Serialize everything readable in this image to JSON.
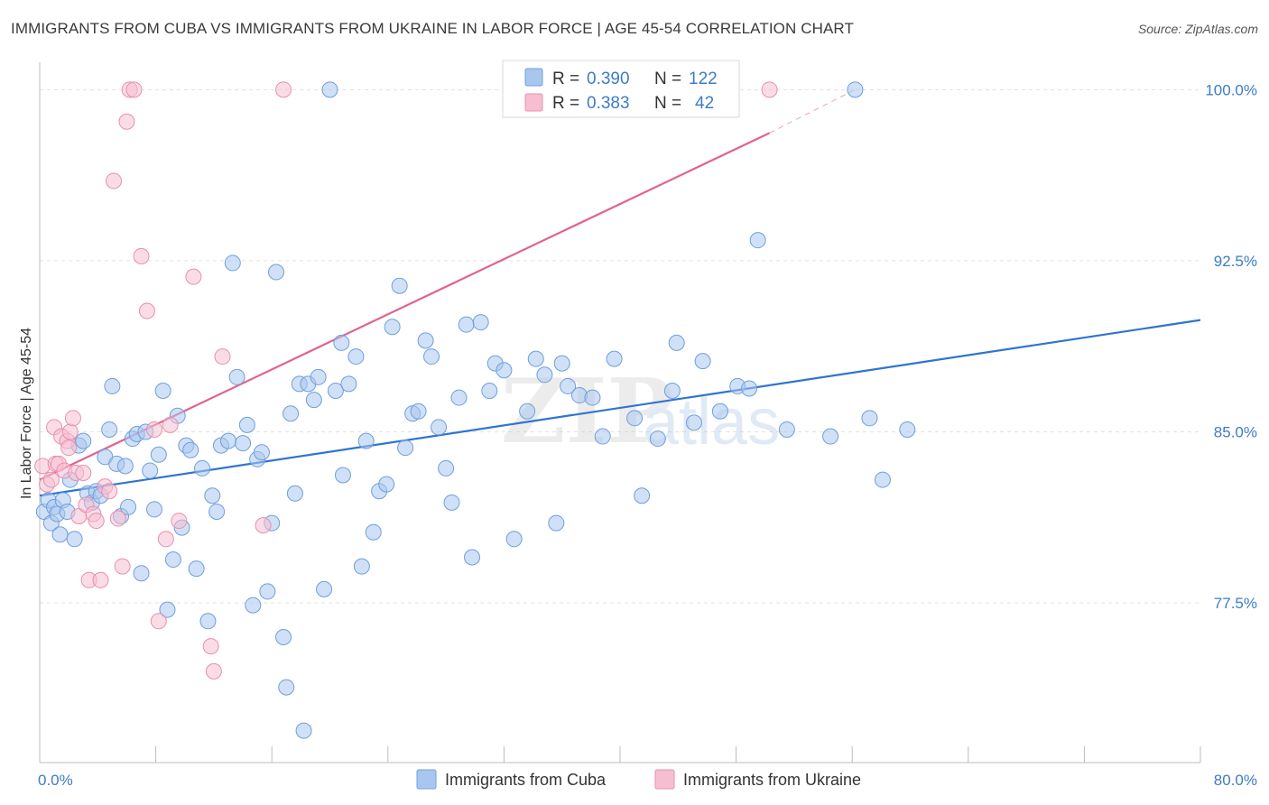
{
  "header": {
    "title": "IMMIGRANTS FROM CUBA VS IMMIGRANTS FROM UKRAINE IN LABOR FORCE | AGE 45-54 CORRELATION CHART",
    "source": "Source: ZipAtlas.com"
  },
  "watermark": {
    "zip": "ZIP",
    "atlas": "atlas"
  },
  "legend": {
    "cuba": {
      "r_label": "R =",
      "r_value": "0.390",
      "n_label": "N =",
      "n_value": "122"
    },
    "ukraine": {
      "r_label": "R =",
      "r_value": "0.383",
      "n_label": "N =",
      "n_value": "42"
    }
  },
  "colors": {
    "cuba_fill": "#a9c7ee",
    "cuba_stroke": "#6f9fdc",
    "cuba_line": "#2f74d0",
    "ukraine_fill": "#f6bfd1",
    "ukraine_stroke": "#e98fae",
    "ukraine_line": "#e2638c",
    "tick_text": "#3d7cc9",
    "grid": "#e3e3e3"
  },
  "chart_data": {
    "type": "scatter",
    "title": "IMMIGRANTS FROM CUBA VS IMMIGRANTS FROM UKRAINE IN LABOR FORCE | AGE 45-54 CORRELATION CHART",
    "xlabel": "",
    "ylabel": "In Labor Force | Age 45-54",
    "xlim": [
      0,
      80
    ],
    "ylim": [
      70.5,
      101.2
    ],
    "x_tick_labels": [
      "0.0%",
      "80.0%"
    ],
    "y_ticks": [
      77.5,
      85.0,
      92.5,
      100.0
    ],
    "y_tick_labels": [
      "77.5%",
      "85.0%",
      "92.5%",
      "100.0%"
    ],
    "grid": true,
    "legend_position": "top-center",
    "series": [
      {
        "name": "Immigrants from Cuba",
        "R": 0.39,
        "N": 122,
        "trend": {
          "x": [
            0.0,
            80.0
          ],
          "y": [
            82.2,
            89.9
          ]
        },
        "points": [
          [
            0.3,
            81.5
          ],
          [
            0.6,
            82.0
          ],
          [
            0.8,
            81.0
          ],
          [
            1.0,
            81.7
          ],
          [
            1.2,
            81.4
          ],
          [
            1.4,
            80.5
          ],
          [
            1.6,
            82.0
          ],
          [
            1.9,
            81.5
          ],
          [
            2.1,
            82.9
          ],
          [
            2.4,
            80.3
          ],
          [
            2.7,
            84.4
          ],
          [
            3.0,
            84.6
          ],
          [
            3.3,
            82.3
          ],
          [
            3.6,
            81.9
          ],
          [
            3.9,
            82.4
          ],
          [
            4.2,
            82.2
          ],
          [
            4.5,
            83.9
          ],
          [
            4.8,
            85.1
          ],
          [
            5.0,
            87.0
          ],
          [
            5.3,
            83.6
          ],
          [
            5.6,
            81.3
          ],
          [
            5.9,
            83.5
          ],
          [
            6.1,
            81.7
          ],
          [
            6.4,
            84.7
          ],
          [
            6.7,
            84.9
          ],
          [
            7.0,
            78.8
          ],
          [
            7.3,
            85.0
          ],
          [
            7.6,
            83.3
          ],
          [
            7.9,
            81.6
          ],
          [
            8.2,
            84.0
          ],
          [
            8.5,
            86.8
          ],
          [
            8.8,
            77.2
          ],
          [
            9.2,
            79.4
          ],
          [
            9.5,
            85.7
          ],
          [
            9.8,
            80.8
          ],
          [
            10.1,
            84.4
          ],
          [
            10.4,
            84.2
          ],
          [
            10.8,
            79.0
          ],
          [
            11.2,
            83.4
          ],
          [
            11.6,
            76.7
          ],
          [
            11.9,
            82.2
          ],
          [
            12.2,
            81.5
          ],
          [
            12.5,
            84.4
          ],
          [
            13.0,
            84.6
          ],
          [
            13.3,
            92.4
          ],
          [
            13.6,
            87.4
          ],
          [
            14.0,
            84.5
          ],
          [
            14.3,
            85.3
          ],
          [
            14.7,
            77.4
          ],
          [
            15.0,
            83.8
          ],
          [
            15.3,
            84.1
          ],
          [
            15.7,
            78.0
          ],
          [
            16.0,
            81.0
          ],
          [
            16.3,
            92.0
          ],
          [
            16.8,
            76.0
          ],
          [
            17.0,
            73.8
          ],
          [
            17.3,
            85.8
          ],
          [
            17.6,
            82.3
          ],
          [
            17.9,
            87.1
          ],
          [
            18.2,
            71.9
          ],
          [
            18.5,
            87.1
          ],
          [
            18.9,
            86.4
          ],
          [
            19.2,
            87.4
          ],
          [
            19.6,
            78.1
          ],
          [
            20.0,
            100.0
          ],
          [
            20.4,
            86.8
          ],
          [
            20.8,
            88.9
          ],
          [
            21.3,
            87.1
          ],
          [
            21.8,
            88.3
          ],
          [
            22.2,
            79.1
          ],
          [
            22.5,
            84.6
          ],
          [
            23.0,
            80.6
          ],
          [
            23.4,
            82.4
          ],
          [
            23.9,
            82.7
          ],
          [
            24.3,
            89.6
          ],
          [
            24.8,
            91.4
          ],
          [
            25.2,
            84.3
          ],
          [
            25.7,
            85.8
          ],
          [
            26.1,
            85.9
          ],
          [
            26.6,
            89.0
          ],
          [
            27.0,
            88.3
          ],
          [
            27.5,
            85.2
          ],
          [
            28.0,
            83.4
          ],
          [
            28.4,
            81.9
          ],
          [
            28.9,
            86.5
          ],
          [
            29.4,
            89.7
          ],
          [
            29.8,
            79.5
          ],
          [
            30.4,
            89.8
          ],
          [
            31.0,
            86.8
          ],
          [
            31.4,
            88.0
          ],
          [
            32.0,
            87.7
          ],
          [
            32.7,
            80.3
          ],
          [
            33.6,
            85.9
          ],
          [
            34.2,
            88.2
          ],
          [
            34.8,
            87.5
          ],
          [
            35.6,
            81.0
          ],
          [
            36.0,
            88.0
          ],
          [
            36.4,
            87.0
          ],
          [
            37.2,
            86.6
          ],
          [
            38.1,
            86.5
          ],
          [
            38.8,
            84.8
          ],
          [
            39.6,
            88.2
          ],
          [
            41.0,
            85.6
          ],
          [
            41.5,
            82.2
          ],
          [
            42.6,
            84.7
          ],
          [
            43.6,
            86.8
          ],
          [
            43.9,
            88.9
          ],
          [
            45.1,
            85.4
          ],
          [
            45.7,
            88.1
          ],
          [
            46.9,
            85.9
          ],
          [
            48.1,
            87.0
          ],
          [
            48.9,
            86.9
          ],
          [
            49.5,
            93.4
          ],
          [
            51.5,
            85.1
          ],
          [
            54.5,
            84.8
          ],
          [
            56.2,
            100.0
          ],
          [
            57.2,
            85.6
          ],
          [
            58.1,
            82.9
          ],
          [
            59.8,
            85.1
          ],
          [
            20.9,
            83.1
          ]
        ]
      },
      {
        "name": "Immigrants from Ukraine",
        "R": 0.383,
        "N": 42,
        "trend": {
          "x": [
            0.0,
            50.3
          ],
          "y": [
            82.9,
            98.1
          ]
        },
        "trend_dashed": {
          "x": [
            50.3,
            56.2
          ],
          "y": [
            98.1,
            100.0
          ]
        },
        "points": [
          [
            0.2,
            83.5
          ],
          [
            0.5,
            82.7
          ],
          [
            0.8,
            82.9
          ],
          [
            1.0,
            85.2
          ],
          [
            1.1,
            83.6
          ],
          [
            1.3,
            83.6
          ],
          [
            1.5,
            84.8
          ],
          [
            1.7,
            83.3
          ],
          [
            1.9,
            84.6
          ],
          [
            2.1,
            85.0
          ],
          [
            2.3,
            85.6
          ],
          [
            2.5,
            83.2
          ],
          [
            2.7,
            81.3
          ],
          [
            3.0,
            83.2
          ],
          [
            3.2,
            81.8
          ],
          [
            3.4,
            78.5
          ],
          [
            3.7,
            81.4
          ],
          [
            3.9,
            81.1
          ],
          [
            4.2,
            78.5
          ],
          [
            4.5,
            82.6
          ],
          [
            4.8,
            82.4
          ],
          [
            5.1,
            96.0
          ],
          [
            5.4,
            81.2
          ],
          [
            5.7,
            79.1
          ],
          [
            6.0,
            98.6
          ],
          [
            6.2,
            100.0
          ],
          [
            6.5,
            100.0
          ],
          [
            7.0,
            92.7
          ],
          [
            7.4,
            90.3
          ],
          [
            7.9,
            85.1
          ],
          [
            8.2,
            76.7
          ],
          [
            8.7,
            80.3
          ],
          [
            9.0,
            85.3
          ],
          [
            9.6,
            81.1
          ],
          [
            10.6,
            91.8
          ],
          [
            11.8,
            75.6
          ],
          [
            12.0,
            74.5
          ],
          [
            12.6,
            88.3
          ],
          [
            15.4,
            80.9
          ],
          [
            16.8,
            100.0
          ],
          [
            50.3,
            100.0
          ],
          [
            2.0,
            84.3
          ]
        ]
      }
    ]
  },
  "bottom_legend": {
    "cuba": "Immigrants from Cuba",
    "ukraine": "Immigrants from Ukraine"
  }
}
